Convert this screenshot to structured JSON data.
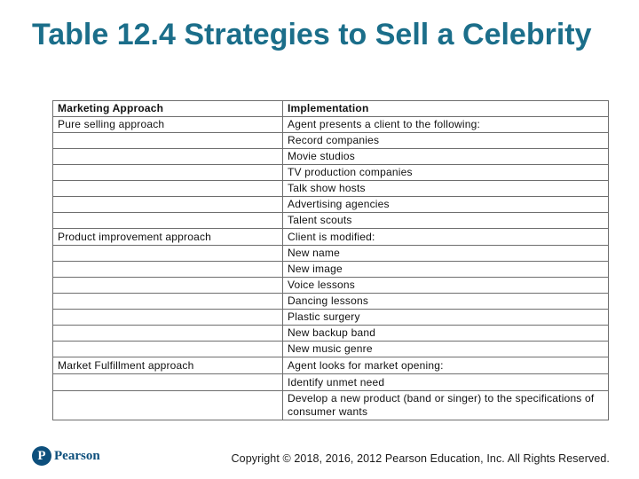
{
  "slide": {
    "title": "Table 12.4 Strategies to Sell a Celebrity",
    "copyright": "Copyright © 2018, 2016, 2012 Pearson Education, Inc. All Rights Reserved.",
    "logo": {
      "mark": "P",
      "text": "Pearson"
    }
  },
  "table": {
    "headers": [
      "Marketing Approach",
      "Implementation"
    ],
    "rows": [
      [
        "Pure selling approach",
        "Agent presents a client to the following:"
      ],
      [
        "",
        "Record companies"
      ],
      [
        "",
        "Movie studios"
      ],
      [
        "",
        "TV production companies"
      ],
      [
        "",
        "Talk show hosts"
      ],
      [
        "",
        "Advertising agencies"
      ],
      [
        "",
        "Talent scouts"
      ],
      [
        "Product improvement approach",
        "Client is modified:"
      ],
      [
        "",
        "New name"
      ],
      [
        "",
        "New image"
      ],
      [
        "",
        "Voice lessons"
      ],
      [
        "",
        "Dancing lessons"
      ],
      [
        "",
        "Plastic surgery"
      ],
      [
        "",
        "New backup band"
      ],
      [
        "",
        "New music genre"
      ],
      [
        "Market Fulfillment approach",
        "Agent looks for market opening:"
      ],
      [
        "",
        "Identify unmet need"
      ],
      [
        "",
        "Develop a new product (band or singer) to the specifications of consumer wants"
      ]
    ]
  },
  "colors": {
    "title": "#1b6e8a",
    "brand": "#0d4f7c",
    "border": "#6e6e6e"
  }
}
